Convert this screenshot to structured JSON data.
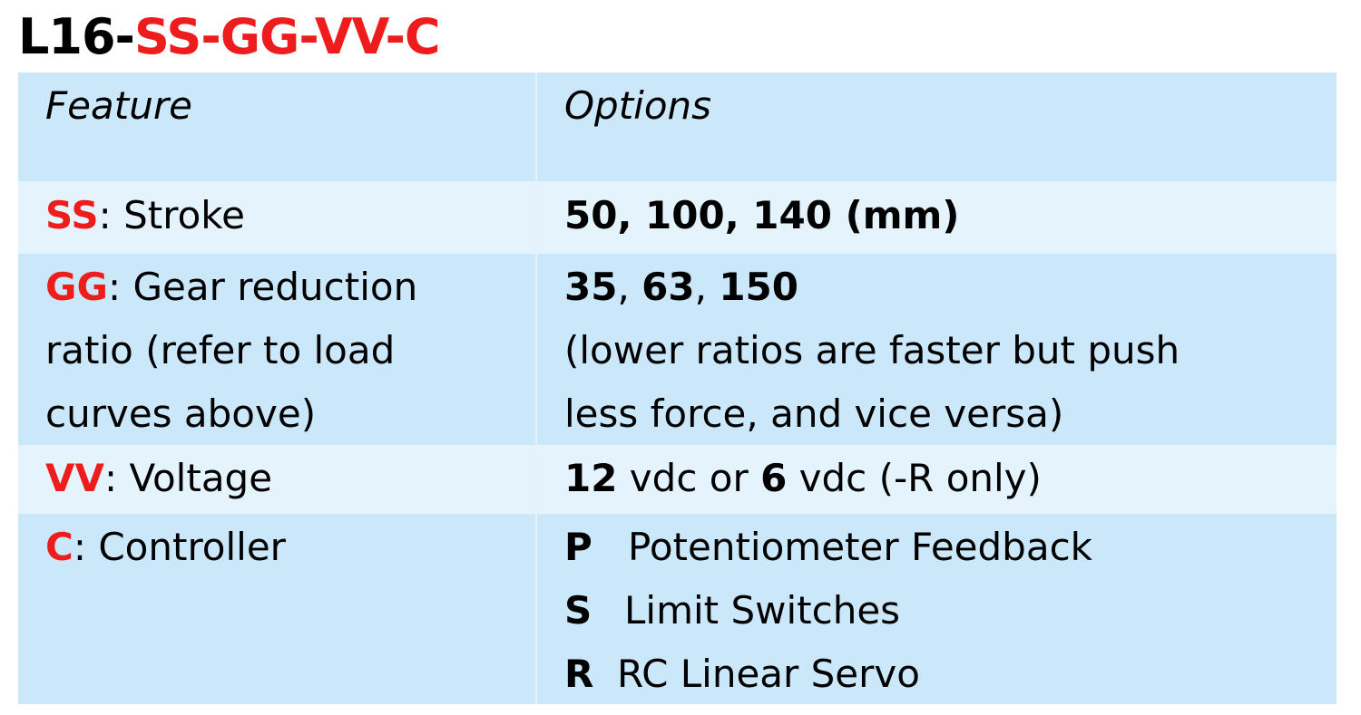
{
  "title": {
    "prefix": "L16-",
    "codes": "SS-GG-VV-C"
  },
  "table": {
    "header": {
      "feature": "Feature",
      "options": "Options"
    },
    "rows": [
      {
        "code": "SS",
        "feature_text": ": Stroke",
        "options": {
          "bold_line": "50, 100, 140 (mm)"
        }
      },
      {
        "code": "GG",
        "feature_lines": [
          ": Gear reduction",
          "ratio (refer to load",
          "curves above)"
        ],
        "options": {
          "v1": "35",
          "sep1": ", ",
          "v2": "63",
          "sep2": ", ",
          "v3": "150",
          "note_lines": [
            "(lower ratios are faster but push",
            "less force, and vice versa)"
          ]
        }
      },
      {
        "code": "VV",
        "feature_text": ": Voltage",
        "options": {
          "v1": "12",
          "t1": " vdc or ",
          "v2": "6",
          "t2": " vdc (-R only)"
        }
      },
      {
        "code": "C",
        "feature_text": ": Controller",
        "options": {
          "items": [
            {
              "code": "P",
              "label": "Potentiometer Feedback"
            },
            {
              "code": "S",
              "label": "Limit Switches"
            },
            {
              "code": "R",
              "label": "RC Linear Servo"
            }
          ]
        }
      }
    ]
  },
  "colors": {
    "accent_red": "#ee1c1c",
    "row_dark": "#cbe8fa",
    "row_light": "#e4f3fc",
    "text": "#000000"
  }
}
